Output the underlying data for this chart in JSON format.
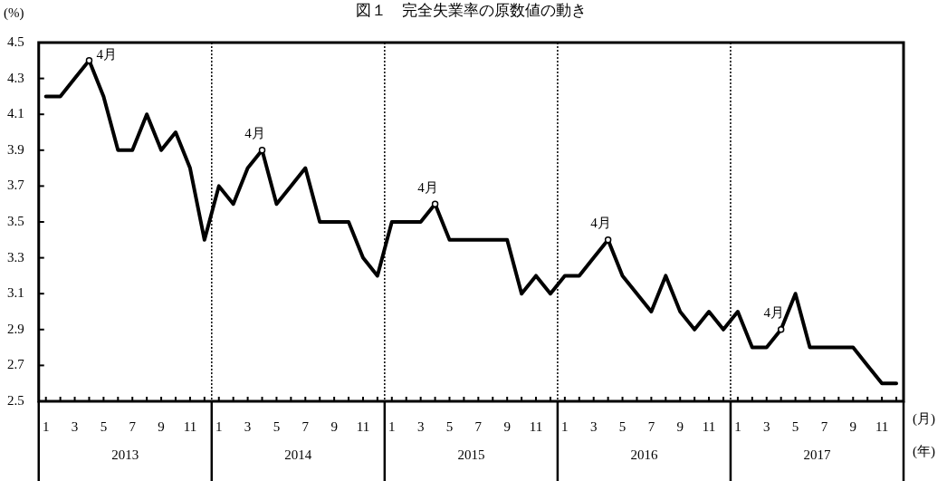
{
  "chart_data": {
    "type": "line",
    "title": "図１　完全失業率の原数値の動き",
    "ylabel": "(%)",
    "xlabel": "(月)",
    "categories": [
      "1",
      null,
      "3",
      null,
      "5",
      null,
      "7",
      null,
      "9",
      null,
      "11",
      null,
      "1",
      null,
      "3",
      null,
      "5",
      null,
      "7",
      null,
      "9",
      null,
      "11",
      null,
      "1",
      null,
      "3",
      null,
      "5",
      null,
      "7",
      null,
      "9",
      null,
      "11",
      null,
      "1",
      null,
      "3",
      null,
      "5",
      null,
      "7",
      null,
      "9",
      null,
      "11",
      null,
      "1",
      null,
      "3",
      null,
      "5",
      null,
      "7",
      null,
      "9",
      null,
      "11",
      null
    ],
    "series": [
      {
        "color": "#000000",
        "values": [
          4.2,
          4.2,
          4.3,
          4.4,
          4.2,
          3.9,
          3.9,
          4.1,
          3.9,
          4.0,
          3.8,
          3.4,
          3.7,
          3.6,
          3.8,
          3.9,
          3.6,
          3.7,
          3.8,
          3.5,
          3.5,
          3.5,
          3.3,
          3.2,
          3.5,
          3.5,
          3.5,
          3.6,
          3.4,
          3.4,
          3.4,
          3.4,
          3.4,
          3.1,
          3.2,
          3.1,
          3.2,
          3.2,
          3.3,
          3.4,
          3.2,
          3.1,
          3.0,
          3.2,
          3.0,
          2.9,
          3.0,
          2.9,
          3.0,
          2.8,
          2.8,
          2.9,
          3.1,
          2.8,
          2.8,
          2.8,
          2.8,
          2.7,
          2.6,
          2.6
        ]
      }
    ],
    "ylim": [
      2.5,
      4.5
    ],
    "yticks": [
      2.5,
      2.7,
      2.9,
      3.1,
      3.3,
      3.5,
      3.7,
      3.9,
      4.1,
      4.3,
      4.5
    ],
    "marker": "none",
    "line_style": "solid",
    "legend": false,
    "annotations": [
      "4月",
      "4月",
      "4月",
      "4月",
      "4月",
      "2013",
      "2014",
      "2015",
      "2016",
      "2017",
      "(年)"
    ]
  }
}
